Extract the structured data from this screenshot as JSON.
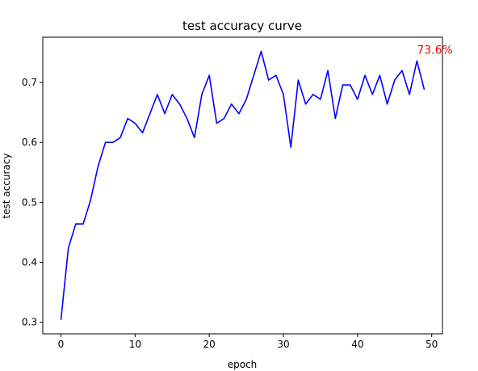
{
  "chart_data": {
    "type": "line",
    "title": "test accuracy curve",
    "xlabel": "epoch",
    "ylabel": "test accuracy",
    "xlim": [
      -2.45,
      51.45
    ],
    "ylim": [
      0.2807,
      0.7756
    ],
    "xticks": [
      0,
      10,
      20,
      30,
      40,
      50
    ],
    "xtick_labels": [
      "0",
      "10",
      "20",
      "30",
      "40",
      "50"
    ],
    "yticks": [
      0.3,
      0.4,
      0.5,
      0.6,
      0.7
    ],
    "ytick_labels": [
      "0.3",
      "0.4",
      "0.5",
      "0.6",
      "0.7"
    ],
    "grid": false,
    "series": [
      {
        "color": "#0000ff",
        "x": [
          0,
          1,
          2,
          3,
          4,
          5,
          6,
          7,
          8,
          9,
          10,
          11,
          12,
          13,
          14,
          15,
          16,
          17,
          18,
          19,
          20,
          21,
          22,
          23,
          24,
          25,
          26,
          27,
          28,
          29,
          30,
          31,
          32,
          33,
          34,
          35,
          36,
          37,
          38,
          39,
          40,
          41,
          42,
          43,
          44,
          45,
          46,
          47,
          48,
          49
        ],
        "values": [
          0.304,
          0.424,
          0.464,
          0.464,
          0.504,
          0.56,
          0.6,
          0.6,
          0.608,
          0.64,
          0.632,
          0.616,
          0.648,
          0.68,
          0.648,
          0.68,
          0.664,
          0.64,
          0.608,
          0.68,
          0.712,
          0.632,
          0.64,
          0.664,
          0.648,
          0.672,
          0.712,
          0.752,
          0.704,
          0.712,
          0.68,
          0.592,
          0.704,
          0.664,
          0.68,
          0.672,
          0.72,
          0.64,
          0.696,
          0.696,
          0.672,
          0.712,
          0.68,
          0.712,
          0.664,
          0.704,
          0.72,
          0.68,
          0.736,
          0.688
        ]
      }
    ],
    "annotation": {
      "text": "73.6%",
      "x": 48,
      "y": 0.755,
      "color": "#ff0000"
    }
  }
}
